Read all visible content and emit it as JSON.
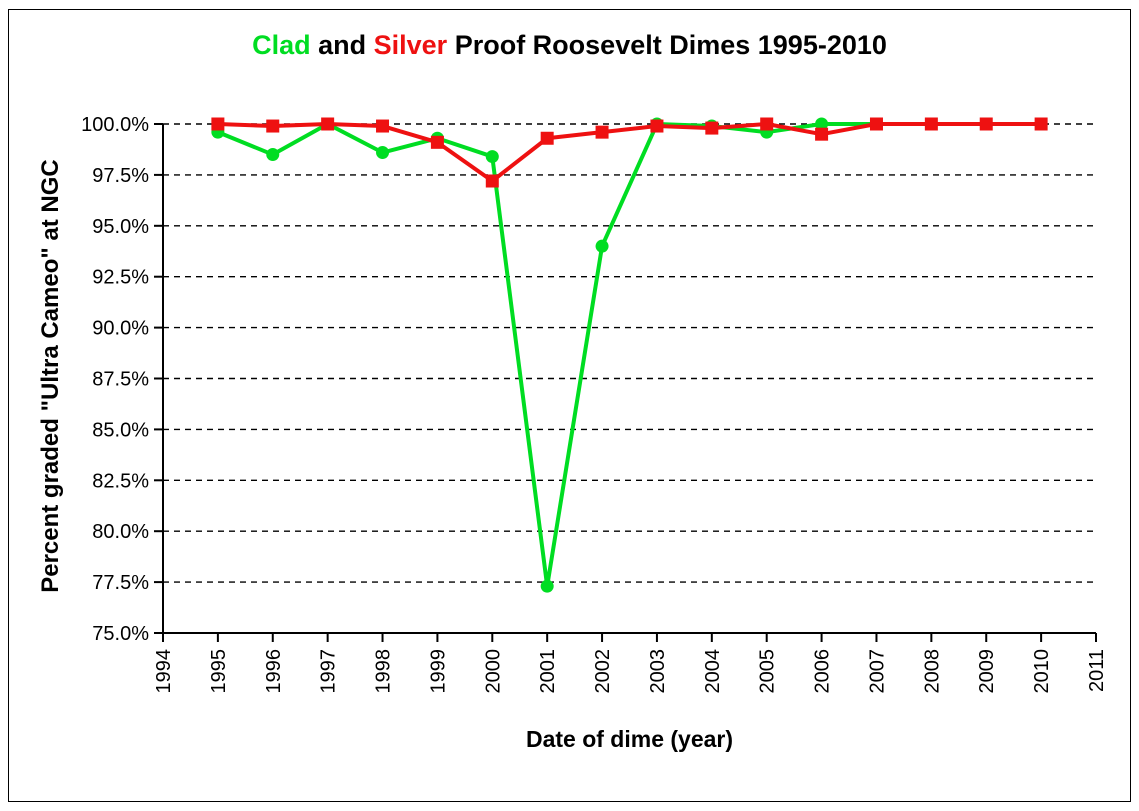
{
  "window": {
    "background_color": "#ffffff",
    "border_color": "#000000"
  },
  "title": {
    "segments": [
      {
        "text": "Clad",
        "color": "#00dd22"
      },
      {
        "text": " and ",
        "color": "#000000"
      },
      {
        "text": "Silver",
        "color": "#ee1111"
      },
      {
        "text": " Proof Roosevelt Dimes 1995-2010",
        "color": "#000000"
      }
    ]
  },
  "chart_data": {
    "type": "line",
    "title": "Clad and Silver Proof Roosevelt Dimes 1995-2010",
    "xlabel": "Date of dime (year)",
    "ylabel": "Percent graded \"Ultra Cameo\" at NGC",
    "xlim": [
      1994,
      2011
    ],
    "ylim": [
      75,
      100
    ],
    "grid": "horizontal-dashed-black",
    "legend_position": "colors-embedded-in-title",
    "xticks": [
      1994,
      1995,
      1996,
      1997,
      1998,
      1999,
      2000,
      2001,
      2002,
      2003,
      2004,
      2005,
      2006,
      2007,
      2008,
      2009,
      2010,
      2011
    ],
    "yticks": [
      {
        "value": 75.0,
        "label": "75.0%"
      },
      {
        "value": 77.5,
        "label": "77.5%"
      },
      {
        "value": 80.0,
        "label": "80.0%"
      },
      {
        "value": 82.5,
        "label": "82.5%"
      },
      {
        "value": 85.0,
        "label": "85.0%"
      },
      {
        "value": 87.5,
        "label": "87.5%"
      },
      {
        "value": 90.0,
        "label": "90.0%"
      },
      {
        "value": 92.5,
        "label": "92.5%"
      },
      {
        "value": 95.0,
        "label": "95.0%"
      },
      {
        "value": 97.5,
        "label": "97.5%"
      },
      {
        "value": 100.0,
        "label": "100.0%"
      }
    ],
    "series": [
      {
        "name": "Clad",
        "color": "#00dd22",
        "marker": "circle",
        "x": [
          1995,
          1996,
          1997,
          1998,
          1999,
          2000,
          2001,
          2002,
          2003,
          2004,
          2005,
          2006,
          2007,
          2008
        ],
        "values": [
          99.6,
          98.5,
          100.0,
          98.6,
          99.3,
          98.4,
          77.3,
          94.0,
          100.0,
          99.9,
          99.6,
          100.0,
          100.0,
          100.0
        ]
      },
      {
        "name": "Silver",
        "color": "#ee1111",
        "marker": "square",
        "x": [
          1995,
          1996,
          1997,
          1998,
          1999,
          2000,
          2001,
          2002,
          2003,
          2004,
          2005,
          2006,
          2007,
          2008,
          2009,
          2010
        ],
        "values": [
          100.0,
          99.9,
          100.0,
          99.9,
          99.1,
          97.2,
          99.3,
          99.6,
          99.9,
          99.8,
          100.0,
          99.5,
          100.0,
          100.0,
          100.0,
          100.0
        ]
      }
    ]
  }
}
